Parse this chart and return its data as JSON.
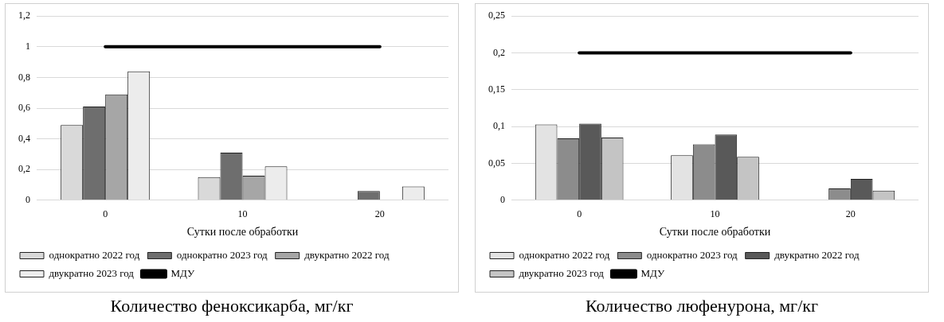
{
  "chart_data": [
    {
      "type": "bar",
      "title": "Количество феноксикарба, мг/кг",
      "xlabel": "Сутки после обработки",
      "categories": [
        "0",
        "10",
        "20"
      ],
      "ylim": [
        0,
        1.2
      ],
      "yticks": [
        {
          "value": 0,
          "label": "0"
        },
        {
          "value": 0.2,
          "label": "0,2"
        },
        {
          "value": 0.4,
          "label": "0,4"
        },
        {
          "value": 0.6,
          "label": "0,6"
        },
        {
          "value": 0.8,
          "label": "0,8"
        },
        {
          "value": 1,
          "label": "1"
        },
        {
          "value": 1.2,
          "label": "1,2"
        }
      ],
      "grid": "y",
      "legend": "bottom",
      "marker": "none",
      "series": [
        {
          "name": "однократно 2022 год",
          "color": "#d9d9d9",
          "values": [
            0.49,
            0.15,
            null
          ]
        },
        {
          "name": "однократно 2023 год",
          "color": "#6e6e6e",
          "values": [
            0.61,
            0.31,
            0.06
          ]
        },
        {
          "name": "двукратно 2022 год",
          "color": "#a6a6a6",
          "values": [
            0.69,
            0.16,
            null
          ]
        },
        {
          "name": "двукратно 2023 год",
          "color": "#ececec",
          "values": [
            0.84,
            0.22,
            0.09
          ]
        },
        {
          "name": "МДУ",
          "type": "line",
          "color": "#000000",
          "values": [
            1,
            1,
            1
          ]
        }
      ]
    },
    {
      "type": "bar",
      "title": "Количество люфенурона, мг/кг",
      "xlabel": "Сутки после обработки",
      "categories": [
        "0",
        "10",
        "20"
      ],
      "ylim": [
        0,
        0.25
      ],
      "yticks": [
        {
          "value": 0,
          "label": "0"
        },
        {
          "value": 0.05,
          "label": "0,05"
        },
        {
          "value": 0.1,
          "label": "0,1"
        },
        {
          "value": 0.15,
          "label": "0,15"
        },
        {
          "value": 0.2,
          "label": "0,2"
        },
        {
          "value": 0.25,
          "label": "0,25"
        }
      ],
      "grid": "y",
      "legend": "bottom",
      "marker": "none",
      "series": [
        {
          "name": "однократно 2022 год",
          "color": "#e3e3e3",
          "values": [
            0.103,
            0.061,
            null
          ]
        },
        {
          "name": "однократно 2023 год",
          "color": "#8c8c8c",
          "values": [
            0.084,
            0.076,
            0.016
          ]
        },
        {
          "name": "двукратно 2022 год",
          "color": "#595959",
          "values": [
            0.104,
            0.089,
            0.029
          ]
        },
        {
          "name": "двукратно 2023 год",
          "color": "#c4c4c4",
          "values": [
            0.085,
            0.059,
            0.013
          ]
        },
        {
          "name": "МДУ",
          "type": "line",
          "color": "#000000",
          "values": [
            0.2,
            0.2,
            0.2
          ]
        }
      ]
    }
  ]
}
